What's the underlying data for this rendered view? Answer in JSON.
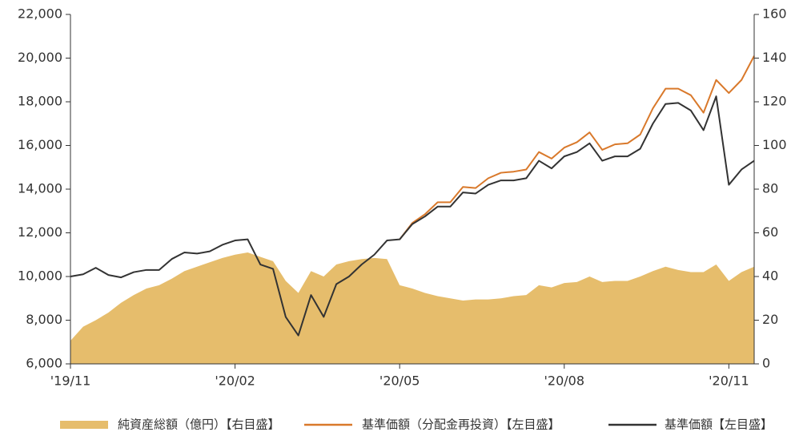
{
  "chart_data": {
    "type": "combo",
    "categories": [
      "'19/11",
      null,
      null,
      null,
      null,
      null,
      null,
      null,
      null,
      null,
      null,
      null,
      null,
      "'20/02",
      null,
      null,
      null,
      null,
      null,
      null,
      null,
      null,
      null,
      null,
      null,
      null,
      "'20/05",
      null,
      null,
      null,
      null,
      null,
      null,
      null,
      null,
      null,
      null,
      null,
      null,
      "'20/08",
      null,
      null,
      null,
      null,
      null,
      null,
      null,
      null,
      null,
      null,
      null,
      null,
      "'20/11",
      null,
      null
    ],
    "ylim": [
      6000,
      22000
    ],
    "yticks": [
      {
        "value": 6000,
        "label": "6,000"
      },
      {
        "value": 8000,
        "label": "8,000"
      },
      {
        "value": 10000,
        "label": "10,000"
      },
      {
        "value": 12000,
        "label": "12,000"
      },
      {
        "value": 14000,
        "label": "14,000"
      },
      {
        "value": 16000,
        "label": "16,000"
      },
      {
        "value": 18000,
        "label": "18,000"
      },
      {
        "value": 20000,
        "label": "20,000"
      },
      {
        "value": 22000,
        "label": "22,000"
      }
    ],
    "y2lim": [
      0,
      160
    ],
    "y2ticks": [
      0,
      20,
      40,
      60,
      80,
      100,
      120,
      140,
      160
    ],
    "series": [
      {
        "name": "純資産総額（億円）【右目盛】",
        "kind": "area",
        "axis": "y2",
        "color": "#e6bd6c",
        "values": [
          10.6,
          17,
          20,
          23.5,
          28,
          31.5,
          34.5,
          36,
          39,
          42.5,
          44.5,
          46.5,
          48.5,
          50,
          51,
          49,
          47,
          38,
          32.5,
          42.5,
          40,
          45.5,
          47,
          48,
          48.5,
          48,
          36,
          34.5,
          32.5,
          31,
          30,
          29,
          29.5,
          29.5,
          30,
          31,
          31.5,
          36,
          35,
          37,
          37.5,
          40,
          37.5,
          38,
          38,
          40,
          42.5,
          44.5,
          43,
          42,
          42,
          45.5,
          38,
          42,
          44.5
        ]
      },
      {
        "name": "基準価額（分配金再投資）【左目盛】",
        "kind": "line",
        "color": "#d9792b",
        "values": [
          null,
          null,
          null,
          null,
          null,
          null,
          null,
          null,
          null,
          null,
          null,
          null,
          null,
          null,
          null,
          null,
          null,
          null,
          null,
          null,
          null,
          null,
          null,
          null,
          null,
          null,
          11700,
          12450,
          12850,
          13400,
          13400,
          14100,
          14050,
          14500,
          14750,
          14800,
          14900,
          15700,
          15400,
          15900,
          16150,
          16600,
          15800,
          16050,
          16100,
          16500,
          17700,
          18600,
          18600,
          18300,
          17500,
          19000,
          18400,
          19000,
          20100
        ]
      },
      {
        "name": "基準価額【左目盛】",
        "kind": "line",
        "color": "#333333",
        "values": [
          10000,
          10100,
          10400,
          10070,
          9960,
          10200,
          10300,
          10300,
          10800,
          11100,
          11050,
          11150,
          11450,
          11650,
          11700,
          10550,
          10350,
          8150,
          7300,
          9150,
          8150,
          9650,
          10000,
          10550,
          11000,
          11650,
          11700,
          12400,
          12750,
          13200,
          13200,
          13850,
          13800,
          14200,
          14400,
          14400,
          14500,
          15300,
          14950,
          15500,
          15700,
          16100,
          15300,
          15500,
          15500,
          15850,
          17000,
          17900,
          17950,
          17600,
          16700,
          18250,
          14200,
          14900,
          15300
        ]
      }
    ]
  }
}
